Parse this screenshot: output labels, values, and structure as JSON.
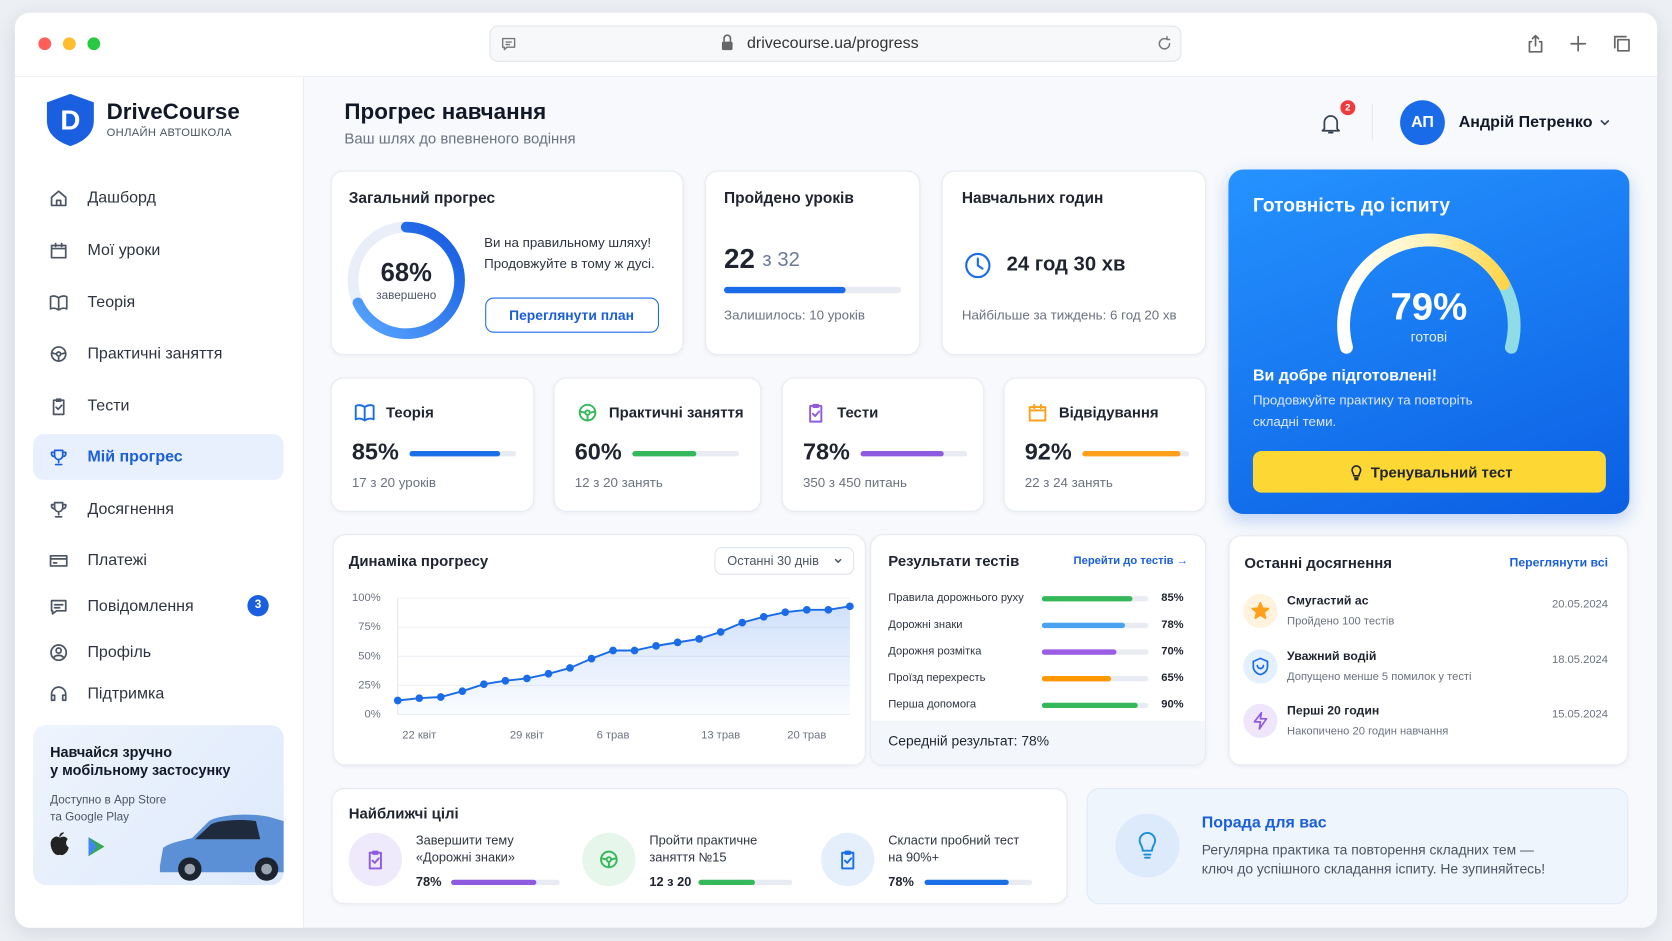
{
  "browser": {
    "url": "drivecourse.ua/progress"
  },
  "sidebar": {
    "logo": "D",
    "brand": "DriveCourse",
    "tagline": "ОНЛАЙН АВТОШКОЛА",
    "nav": [
      {
        "label": "Дашборд"
      },
      {
        "label": "Мої уроки"
      },
      {
        "label": "Теорія"
      },
      {
        "label": "Практичні заняття"
      },
      {
        "label": "Тести"
      },
      {
        "label": "Мій прогрес",
        "active": true
      },
      {
        "label": "Досягнення"
      },
      {
        "label": "Платежі"
      },
      {
        "label": "Повідомлення",
        "badge": 3
      },
      {
        "label": "Профіль"
      },
      {
        "label": "Підтримка"
      }
    ],
    "promo": {
      "title_lines": [
        "Навчайся зручно",
        "у мобільному застосунку"
      ],
      "text_lines": [
        "Доступно в App Store",
        "та Google Play"
      ]
    }
  },
  "header": {
    "title": "Прогрес навчання",
    "subtitle": "Ваш шлях до впевненого водіння",
    "notifications": 2,
    "avatar": "АП",
    "user": "Андрій Петренко"
  },
  "overall": {
    "title": "Загальний прогрес",
    "percent": {
      "value": 68,
      "label": "68%"
    },
    "caption": "завершено",
    "message_lines": [
      "Ви на правильному шляху!",
      "Продовжуйте в тому ж дусі."
    ],
    "button": "Переглянути план"
  },
  "lessons": {
    "title": "Пройдено уроків",
    "done": 22,
    "total": {
      "value": 32,
      "label": "з 32"
    },
    "remaining": "Залишилось: 10 уроків"
  },
  "hours": {
    "title": "Навчальних годин",
    "value": "24 год 30 хв",
    "note": "Найбільше за тиждень: 6 год 20 хв"
  },
  "readiness": {
    "title": "Готовність до іспиту",
    "percent": {
      "value": 79,
      "label": "79%"
    },
    "caption": "готові",
    "heading": "Ви добре підготовлені!",
    "text_lines": [
      "Продовжуйте практику та повторіть",
      "складні теми."
    ],
    "button": "Тренувальний тест"
  },
  "categories": [
    {
      "title": "Теорія",
      "percent": {
        "value": 85,
        "label": "85%"
      },
      "detail": "17 з 20 уроків",
      "color": "#1a6fe6"
    },
    {
      "title": "Практичні заняття",
      "percent": {
        "value": 60,
        "label": "60%"
      },
      "detail": "12 з 20 занять",
      "color": "#34b85a"
    },
    {
      "title": "Тести",
      "percent": {
        "value": 78,
        "label": "78%"
      },
      "detail": "350 з 450 питань",
      "color": "#8e5be0"
    },
    {
      "title": "Відвідування",
      "percent": {
        "value": 92,
        "label": "92%"
      },
      "detail": "22 з 24 занять",
      "color": "#ff9f1a"
    }
  ],
  "chart_data": {
    "type": "line",
    "title": "Динаміка прогресу",
    "period": "Останні 30 днів",
    "categories": [
      null,
      "22 квіт",
      null,
      null,
      null,
      null,
      "29 квіт",
      null,
      null,
      null,
      "6 трав",
      null,
      null,
      null,
      null,
      "13 трав",
      null,
      null,
      null,
      "20 трав",
      null,
      null
    ],
    "values": [
      12,
      14,
      15,
      20,
      26,
      29,
      31,
      35,
      40,
      48,
      55,
      55,
      59,
      62,
      65,
      71,
      79,
      84,
      88,
      90,
      90,
      93
    ],
    "ylim": [
      0,
      100
    ],
    "yticks": [
      {
        "value": 0,
        "label": "0%"
      },
      {
        "value": 25,
        "label": "25%"
      },
      {
        "value": 50,
        "label": "50%"
      },
      {
        "value": 75,
        "label": "75%"
      },
      {
        "value": 100,
        "label": "100%"
      }
    ],
    "color": "#1a6be8",
    "grid": true
  },
  "tests": {
    "title": "Результати тестів",
    "link": "Перейти до тестів →",
    "rows": [
      {
        "name": "Правила дорожнього руху",
        "value": 85,
        "label": "85%",
        "color": "#34b85a"
      },
      {
        "name": "Дорожні знаки",
        "value": 78,
        "label": "78%",
        "color": "#4aa3f0"
      },
      {
        "name": "Дорожня розмітка",
        "value": 70,
        "label": "70%",
        "color": "#9b5de5"
      },
      {
        "name": "Проїзд перехресть",
        "value": 65,
        "label": "65%",
        "color": "#ff9800"
      },
      {
        "name": "Перша допомога",
        "value": 90,
        "label": "90%",
        "color": "#34b85a"
      }
    ],
    "average": "Середній результат: 78%"
  },
  "achievements": {
    "title": "Останні досягнення",
    "link": "Переглянути всі",
    "items": [
      {
        "name": "Смугастий ас",
        "desc": "Пройдено 100 тестів",
        "date": "20.05.2024"
      },
      {
        "name": "Уважний водій",
        "desc": "Допущено менше 5 помилок у тесті",
        "date": "18.05.2024"
      },
      {
        "name": "Перші 20 годин",
        "desc": "Накопичено 20 годин навчання",
        "date": "15.05.2024"
      }
    ]
  },
  "goals": {
    "title": "Найближчі цілі",
    "items": [
      {
        "lines": [
          "Завершити тему",
          "«Дорожні знаки»"
        ],
        "progress": {
          "value": 78,
          "label": "78%"
        },
        "color": "#8e5be0"
      },
      {
        "lines": [
          "Пройти практичне",
          "заняття №15"
        ],
        "progress": {
          "value": 12,
          "label": "12 з 20"
        },
        "total": 20,
        "color": "#34b85a"
      },
      {
        "lines": [
          "Скласти пробний тест",
          "на 90%+"
        ],
        "progress": {
          "value": 78,
          "label": "78%"
        },
        "color": "#1a6fe6"
      }
    ]
  },
  "tip": {
    "title": "Порада для вас",
    "text_lines": [
      "Регулярна практика та повторення складних тем —",
      "ключ до успішного складання іспиту. Не зупиняйтесь!"
    ]
  }
}
